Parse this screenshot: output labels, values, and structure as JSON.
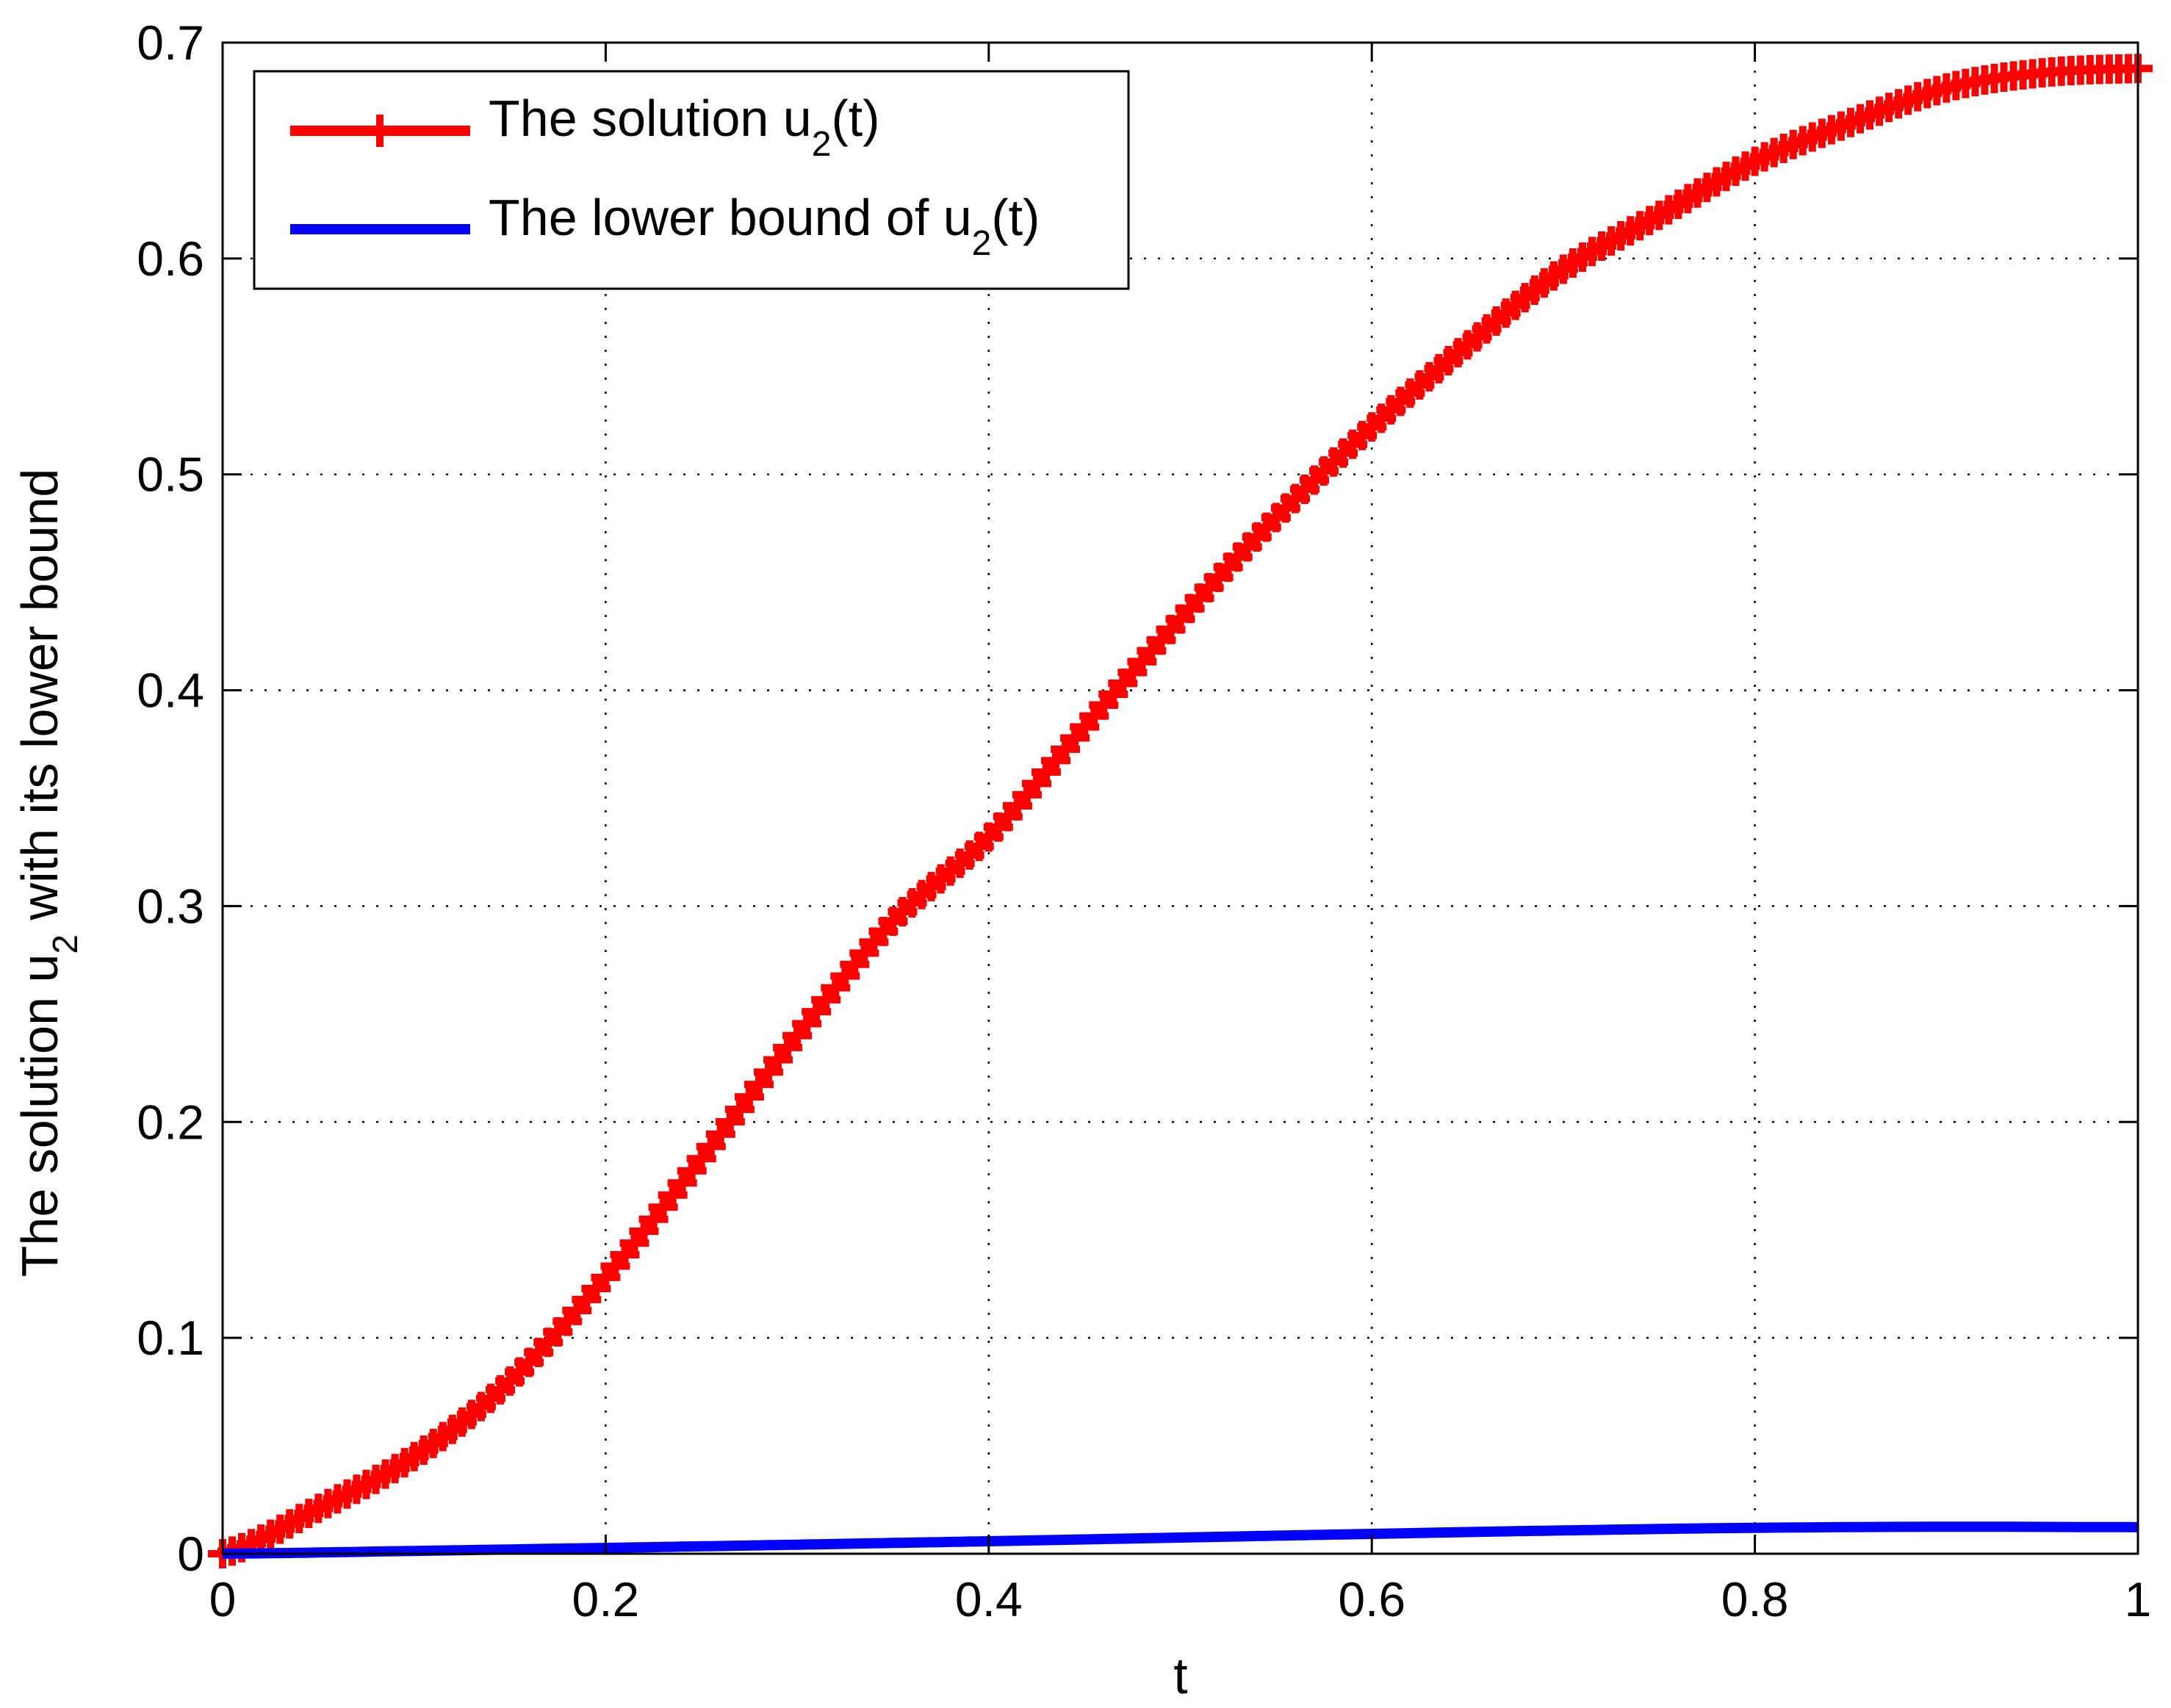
{
  "chart_data": {
    "type": "line",
    "title": "",
    "xlabel": "t",
    "ylabel": "The solution u",
    "ylabel_sub": "2",
    "ylabel_tail": " with its lower bound",
    "xlim": [
      0,
      1
    ],
    "ylim": [
      0,
      0.7
    ],
    "x_ticks": [
      0,
      0.2,
      0.4,
      0.6,
      0.8,
      1
    ],
    "x_tick_labels": [
      "0",
      "0.2",
      "0.4",
      "0.6",
      "0.8",
      "1"
    ],
    "y_ticks": [
      0,
      0.1,
      0.2,
      0.3,
      0.4,
      0.5,
      0.6,
      0.7
    ],
    "y_tick_labels": [
      "0",
      "0.1",
      "0.2",
      "0.3",
      "0.4",
      "0.5",
      "0.6",
      "0.7"
    ],
    "grid": true,
    "legend_position": "top-left",
    "series": [
      {
        "name": "The solution u",
        "name_sub": "2",
        "name_tail": "(t)",
        "color": "#ff0000",
        "marker": "plus",
        "x": [
          0,
          0.05,
          0.1,
          0.15,
          0.2,
          0.25,
          0.3,
          0.35,
          0.4,
          0.45,
          0.5,
          0.55,
          0.6,
          0.65,
          0.7,
          0.75,
          0.8,
          0.85,
          0.9,
          0.95,
          1.0
        ],
        "y": [
          0,
          0.021,
          0.045,
          0.08,
          0.128,
          0.183,
          0.24,
          0.293,
          0.332,
          0.383,
          0.433,
          0.48,
          0.522,
          0.56,
          0.595,
          0.62,
          0.645,
          0.663,
          0.679,
          0.686,
          0.688
        ]
      },
      {
        "name": "The lower bound of u",
        "name_sub": "2",
        "name_tail": "(t)",
        "color": "#0000ff",
        "marker": "none",
        "x": [
          0,
          0.1,
          0.2,
          0.3,
          0.4,
          0.5,
          0.6,
          0.7,
          0.8,
          0.9,
          1.0
        ],
        "y": [
          0,
          0.0013,
          0.0027,
          0.0042,
          0.0058,
          0.0075,
          0.0092,
          0.0108,
          0.012,
          0.0125,
          0.0123
        ]
      }
    ]
  }
}
